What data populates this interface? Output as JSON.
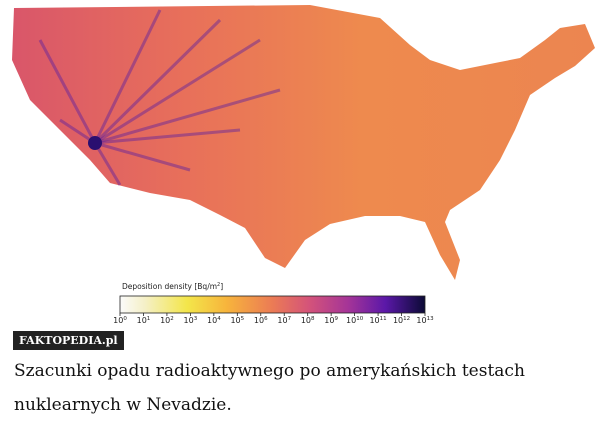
{
  "map": {
    "colorbar": {
      "label": {
        "text": "Deposition density [Bq/m",
        "superscript": "2",
        "close": "]"
      },
      "ticks": [
        {
          "base": "10",
          "exponent": "0"
        },
        {
          "base": "10",
          "exponent": "1"
        },
        {
          "base": "10",
          "exponent": "2"
        },
        {
          "base": "10",
          "exponent": "3"
        },
        {
          "base": "10",
          "exponent": "4"
        },
        {
          "base": "10",
          "exponent": "5"
        },
        {
          "base": "10",
          "exponent": "6"
        },
        {
          "base": "10",
          "exponent": "7"
        },
        {
          "base": "10",
          "exponent": "8"
        },
        {
          "base": "10",
          "exponent": "9"
        },
        {
          "base": "10",
          "exponent": "10"
        },
        {
          "base": "10",
          "exponent": "11"
        },
        {
          "base": "10",
          "exponent": "12"
        },
        {
          "base": "10",
          "exponent": "13"
        }
      ]
    }
  },
  "watermark": "FAKTOPEDIA.pl",
  "caption": "Szacunki opadu radioaktywnego po amerykańskich testach nuklearnych w Nevadzie."
}
